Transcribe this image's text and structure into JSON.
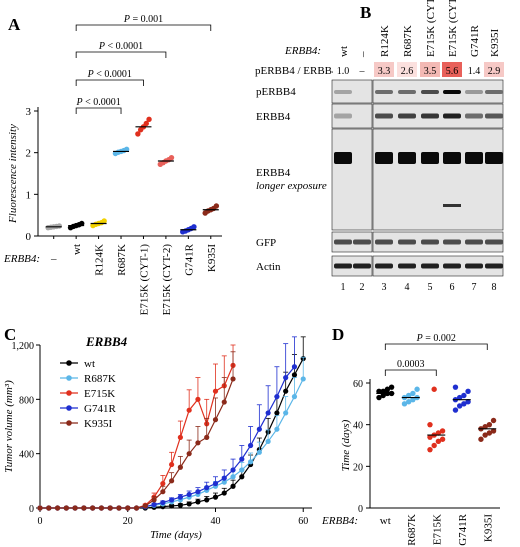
{
  "panels": {
    "A": "A",
    "B": "B",
    "C": "C",
    "D": "D"
  },
  "panel_b": {
    "title_prefix": "ERBB4:",
    "lanes": [
      "wt",
      "–",
      "R124K",
      "R687K",
      "E715K (CYT-1)",
      "E715K (CYT-2)",
      "G741R",
      "K935I"
    ],
    "ratio_label": "pERBB4 / ERBB4",
    "ratios": [
      "1.0",
      "–",
      "3.3",
      "2.6",
      "3.5",
      "5.6",
      "1.4",
      "2.9"
    ],
    "ratio_colors": [
      "#ffffff",
      "#ffffff",
      "#f6c9c6",
      "#fbe0de",
      "#f3b9b4",
      "#e8605a",
      "#ffffff",
      "#f6c9c6"
    ],
    "blot_labels": [
      "pERBB4",
      "ERBB4",
      "ERBB4",
      "longer exposure",
      "GFP",
      "Actin"
    ],
    "lane_numbers": [
      "1",
      "2",
      "3",
      "4",
      "5",
      "6",
      "7",
      "8"
    ]
  },
  "chart_data": [
    {
      "panel": "A",
      "type": "scatter",
      "ylabel": "Fluorescence intensity",
      "xlabel_prefix": "ERBB4:",
      "categories": [
        "–",
        "wt",
        "R124K",
        "R687K",
        "E715K (CYT-1)",
        "E715K (CYT-2)",
        "G741R",
        "K935I"
      ],
      "colors": [
        "#a6a6a6",
        "#000000",
        "#f2d200",
        "#5bb6e8",
        "#e0301e",
        "#e8605a",
        "#1f2fd0",
        "#8b2a1a"
      ],
      "points": [
        [
          0.2,
          0.21,
          0.22,
          0.23,
          0.24
        ],
        [
          0.2,
          0.23,
          0.25,
          0.27,
          0.3
        ],
        [
          0.25,
          0.28,
          0.3,
          0.32,
          0.36
        ],
        [
          1.98,
          2.01,
          2.03,
          2.05,
          2.08
        ],
        [
          2.45,
          2.55,
          2.62,
          2.7,
          2.8
        ],
        [
          1.72,
          1.76,
          1.8,
          1.83,
          1.88
        ],
        [
          0.1,
          0.12,
          0.15,
          0.18,
          0.22
        ],
        [
          0.55,
          0.6,
          0.63,
          0.66,
          0.72
        ]
      ],
      "means": [
        0.22,
        0.25,
        0.3,
        2.03,
        2.62,
        1.8,
        0.15,
        0.63
      ],
      "ylim": [
        0,
        3
      ],
      "yticks": [
        "0",
        "1",
        "2",
        "3"
      ],
      "brackets": [
        {
          "from": 1,
          "to": 3,
          "label": "P < 0.0001"
        },
        {
          "from": 1,
          "to": 4,
          "label": "P < 0.0001"
        },
        {
          "from": 1,
          "to": 5,
          "label": "P < 0.0001"
        },
        {
          "from": 1,
          "to": 7,
          "label": "P = 0.001"
        }
      ]
    },
    {
      "panel": "C",
      "type": "line",
      "title": "ERBB4",
      "xlabel": "Time (days)",
      "ylabel": "Tumor volume (mm³)",
      "xlim": [
        0,
        62
      ],
      "ylim": [
        0,
        1200
      ],
      "xticks": [
        0,
        20,
        40,
        60
      ],
      "yticks": [
        0,
        400,
        800,
        1200
      ],
      "yticklabels": [
        "0",
        "400",
        "800",
        "1,200"
      ],
      "series": [
        {
          "name": "wt",
          "color": "#000000",
          "x": [
            0,
            2,
            4,
            6,
            8,
            10,
            12,
            14,
            16,
            18,
            20,
            22,
            24,
            26,
            28,
            30,
            32,
            34,
            36,
            38,
            40,
            42,
            44,
            46,
            48,
            50,
            52,
            54,
            56,
            58,
            60
          ],
          "y": [
            0,
            0,
            0,
            0,
            0,
            0,
            0,
            0,
            0,
            0,
            0,
            0,
            0,
            5,
            10,
            15,
            20,
            30,
            45,
            60,
            80,
            110,
            160,
            230,
            320,
            430,
            560,
            700,
            860,
            980,
            1100
          ],
          "err": [
            0,
            0,
            0,
            0,
            0,
            0,
            0,
            0,
            0,
            0,
            0,
            0,
            0,
            5,
            8,
            10,
            12,
            15,
            20,
            25,
            30,
            35,
            45,
            55,
            70,
            85,
            100,
            120,
            140,
            150,
            160
          ]
        },
        {
          "name": "R687K",
          "color": "#5bb6e8",
          "x": [
            0,
            2,
            4,
            6,
            8,
            10,
            12,
            14,
            16,
            18,
            20,
            22,
            24,
            26,
            28,
            30,
            32,
            34,
            36,
            38,
            40,
            42,
            44,
            46,
            48,
            50,
            52,
            54,
            56,
            58,
            60
          ],
          "y": [
            0,
            0,
            0,
            0,
            0,
            0,
            0,
            0,
            0,
            0,
            0,
            0,
            10,
            20,
            30,
            45,
            60,
            80,
            100,
            130,
            160,
            190,
            230,
            280,
            340,
            410,
            490,
            580,
            700,
            820,
            950
          ],
          "err": [
            0,
            0,
            0,
            0,
            0,
            0,
            0,
            0,
            0,
            0,
            0,
            0,
            5,
            8,
            10,
            12,
            15,
            20,
            25,
            30,
            35,
            40,
            45,
            55,
            65,
            75,
            85,
            100,
            120,
            140,
            160
          ]
        },
        {
          "name": "E715K",
          "color": "#e0301e",
          "x": [
            0,
            2,
            4,
            6,
            8,
            10,
            12,
            14,
            16,
            18,
            20,
            22,
            24,
            26,
            28,
            30,
            32,
            34,
            36,
            38,
            40,
            42,
            44
          ],
          "y": [
            0,
            0,
            0,
            0,
            0,
            0,
            0,
            0,
            0,
            0,
            0,
            0,
            20,
            80,
            180,
            320,
            520,
            720,
            800,
            620,
            860,
            900,
            1050
          ],
          "err": [
            0,
            0,
            0,
            0,
            0,
            0,
            0,
            0,
            0,
            0,
            0,
            0,
            10,
            30,
            60,
            90,
            120,
            150,
            160,
            180,
            200,
            220,
            150
          ]
        },
        {
          "name": "G741R",
          "color": "#1f2fd0",
          "x": [
            0,
            2,
            4,
            6,
            8,
            10,
            12,
            14,
            16,
            18,
            20,
            22,
            24,
            26,
            28,
            30,
            32,
            34,
            36,
            38,
            40,
            42,
            44,
            46,
            48,
            50,
            52,
            54,
            56,
            58
          ],
          "y": [
            0,
            0,
            0,
            0,
            0,
            0,
            0,
            0,
            0,
            0,
            0,
            0,
            10,
            25,
            40,
            60,
            80,
            100,
            120,
            150,
            180,
            220,
            280,
            360,
            460,
            580,
            700,
            820,
            960,
            1040
          ],
          "err": [
            0,
            0,
            0,
            0,
            0,
            0,
            0,
            0,
            0,
            0,
            0,
            0,
            5,
            10,
            12,
            15,
            20,
            25,
            30,
            40,
            50,
            60,
            80,
            100,
            140,
            180,
            200,
            220,
            250,
            220
          ]
        },
        {
          "name": "K935I",
          "color": "#8b2a1a",
          "x": [
            0,
            2,
            4,
            6,
            8,
            10,
            12,
            14,
            16,
            18,
            20,
            22,
            24,
            26,
            28,
            30,
            32,
            34,
            36,
            38,
            40,
            42,
            44
          ],
          "y": [
            0,
            0,
            0,
            0,
            0,
            0,
            0,
            0,
            0,
            0,
            0,
            0,
            15,
            60,
            120,
            200,
            300,
            400,
            480,
            520,
            650,
            780,
            950
          ],
          "err": [
            0,
            0,
            0,
            0,
            0,
            0,
            0,
            0,
            0,
            0,
            0,
            0,
            8,
            25,
            40,
            60,
            80,
            100,
            120,
            140,
            160,
            180,
            200
          ]
        }
      ]
    },
    {
      "panel": "D",
      "type": "scatter",
      "ylabel": "Time (days)",
      "xlabel_prefix": "ERBB4:",
      "categories": [
        "wt",
        "R687K",
        "E715K",
        "G741R",
        "K935I"
      ],
      "colors": [
        "#000000",
        "#5bb6e8",
        "#e0301e",
        "#1f2fd0",
        "#8b2a1a"
      ],
      "points": [
        [
          53,
          54,
          55,
          55,
          56,
          56,
          57,
          58
        ],
        [
          50,
          51,
          52,
          53,
          53,
          54,
          55,
          57
        ],
        [
          28,
          30,
          32,
          33,
          34,
          35,
          36,
          37,
          40,
          57
        ],
        [
          47,
          49,
          50,
          51,
          52,
          53,
          54,
          56,
          58
        ],
        [
          33,
          35,
          36,
          37,
          38,
          39,
          40,
          42
        ]
      ],
      "means": [
        55,
        53,
        35,
        52,
        38
      ],
      "ylim": [
        0,
        60
      ],
      "yticks": [
        "0",
        "20",
        "40",
        "60"
      ],
      "brackets": [
        {
          "from": 0,
          "to": 2,
          "label": "0.0003"
        },
        {
          "from": 0,
          "to": 4,
          "label": "P = 0.002"
        }
      ]
    }
  ]
}
